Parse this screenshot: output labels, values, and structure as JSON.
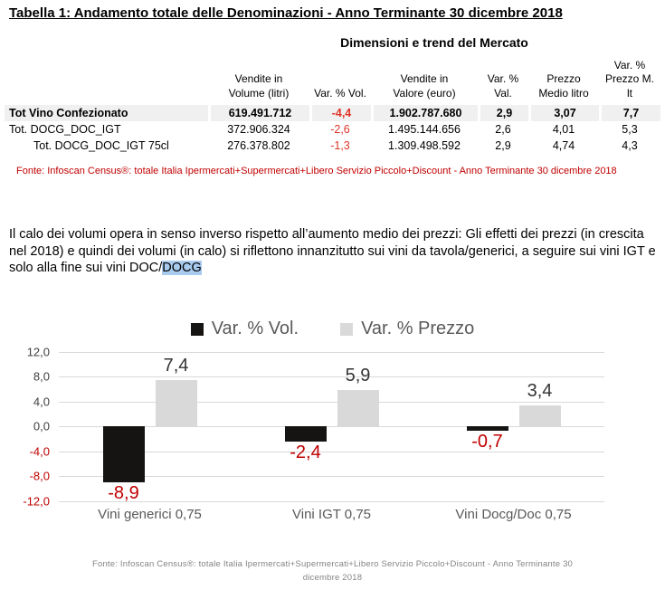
{
  "page": {
    "title": "Tabella 1: Andamento totale delle Denominazioni - Anno Terminante 30 dicembre 2018"
  },
  "table": {
    "section_title": "Dimensioni e trend del Mercato",
    "columns": [
      "",
      "Vendite in\nVolume (litri)",
      "Var. % Vol.",
      "Vendite in\nValore (euro)",
      "Var. %\nVal.",
      "Prezzo\nMedio litro",
      "Var. %\nPrezzo M.\nlt"
    ],
    "rows": [
      {
        "label": "Tot Vino Confezionato",
        "volume": "619.491.712",
        "var_vol": "-4,4",
        "valore": "1.902.787.680",
        "var_val": "2,9",
        "prezzo": "3,07",
        "var_prezzo": "7,7"
      },
      {
        "label": "Tot. DOCG_DOC_IGT",
        "volume": "372.906.324",
        "var_vol": "-2,6",
        "valore": "1.495.144.656",
        "var_val": "2,6",
        "prezzo": "4,01",
        "var_prezzo": "5,3"
      },
      {
        "label": "Tot. DOCG_DOC_IGT 75cl",
        "volume": "276.378.802",
        "var_vol": "-1,3",
        "valore": "1.309.498.592",
        "var_val": "2,9",
        "prezzo": "4,74",
        "var_prezzo": "4,3"
      }
    ],
    "fonte": "Fonte: Infoscan Census®: totale Italia Ipermercati+Supermercati+Libero Servizio Piccolo+Discount - Anno Terminante 30 dicembre 2018"
  },
  "paragraph": {
    "text_before": "Il calo dei volumi opera in senso inverso rispetto all’aumento medio dei prezzi: Gli effetti dei prezzi (in crescita nel 2018) e quindi dei volumi (in calo) si riflettono innanzitutto sui vini da tavola/generici, a seguire sui vini IGT e solo alla fine sui vini DOC/",
    "highlight": "DOCG"
  },
  "chart_data": {
    "type": "bar",
    "title": "",
    "categories": [
      "Vini generici 0,75",
      "Vini IGT 0,75",
      "Vini Docg/Doc 0,75"
    ],
    "series": [
      {
        "name": "Var. % Vol.",
        "color": "#161412",
        "values": [
          -8.9,
          -2.4,
          -0.7
        ],
        "labels": [
          "-8,9",
          "-2,4",
          "-0,7"
        ]
      },
      {
        "name": "Var. % Prezzo",
        "color": "#d9d9d9",
        "values": [
          7.4,
          5.9,
          3.4
        ],
        "labels": [
          "7,4",
          "5,9",
          "3,4"
        ]
      }
    ],
    "ylim": [
      -12,
      12
    ],
    "ytick_step": 4,
    "yticks": [
      "12,0",
      "8,0",
      "4,0",
      "0,0",
      "-4,0",
      "-8,0",
      "-12,0"
    ],
    "grid": true,
    "legend_position": "top",
    "xlabel": "",
    "ylabel": ""
  },
  "chart_fonte": "Fonte:  Infoscan Census®: totale Italia Ipermercati+Supermercati+Libero Servizio Piccolo+Discount - Anno Terminante 30 dicembre 2018",
  "colors": {
    "axis_text": "#404040",
    "negative_text": "#c00000",
    "positive_label": "#333333",
    "table_negative": "#e03428",
    "fonte_red": "#c00000",
    "highlight_blue": "#a9cbee",
    "gridline": "#d9d9d9",
    "legend_text": "#595959"
  }
}
